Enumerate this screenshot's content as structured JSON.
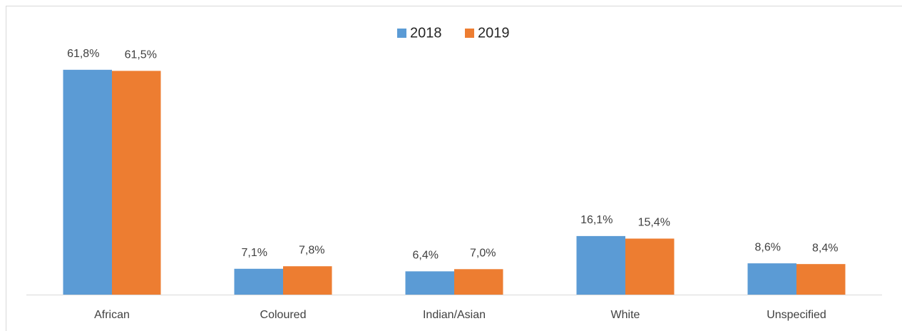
{
  "chart_data": {
    "type": "bar",
    "categories": [
      "African",
      "Coloured",
      "Indian/Asian",
      "White",
      "Unspecified"
    ],
    "series": [
      {
        "name": "2018",
        "color": "#5b9bd5",
        "values": [
          61.8,
          7.1,
          6.4,
          16.1,
          8.6
        ],
        "value_labels": [
          "61,8%",
          "7,1%",
          "6,4%",
          "16,1%",
          "8,6%"
        ]
      },
      {
        "name": "2019",
        "color": "#ed7d31",
        "values": [
          61.5,
          7.8,
          7.0,
          15.4,
          8.4
        ],
        "value_labels": [
          "61,5%",
          "7,8%",
          "7,0%",
          "15,4%",
          "8,4%"
        ]
      }
    ],
    "legend": "top"
  }
}
